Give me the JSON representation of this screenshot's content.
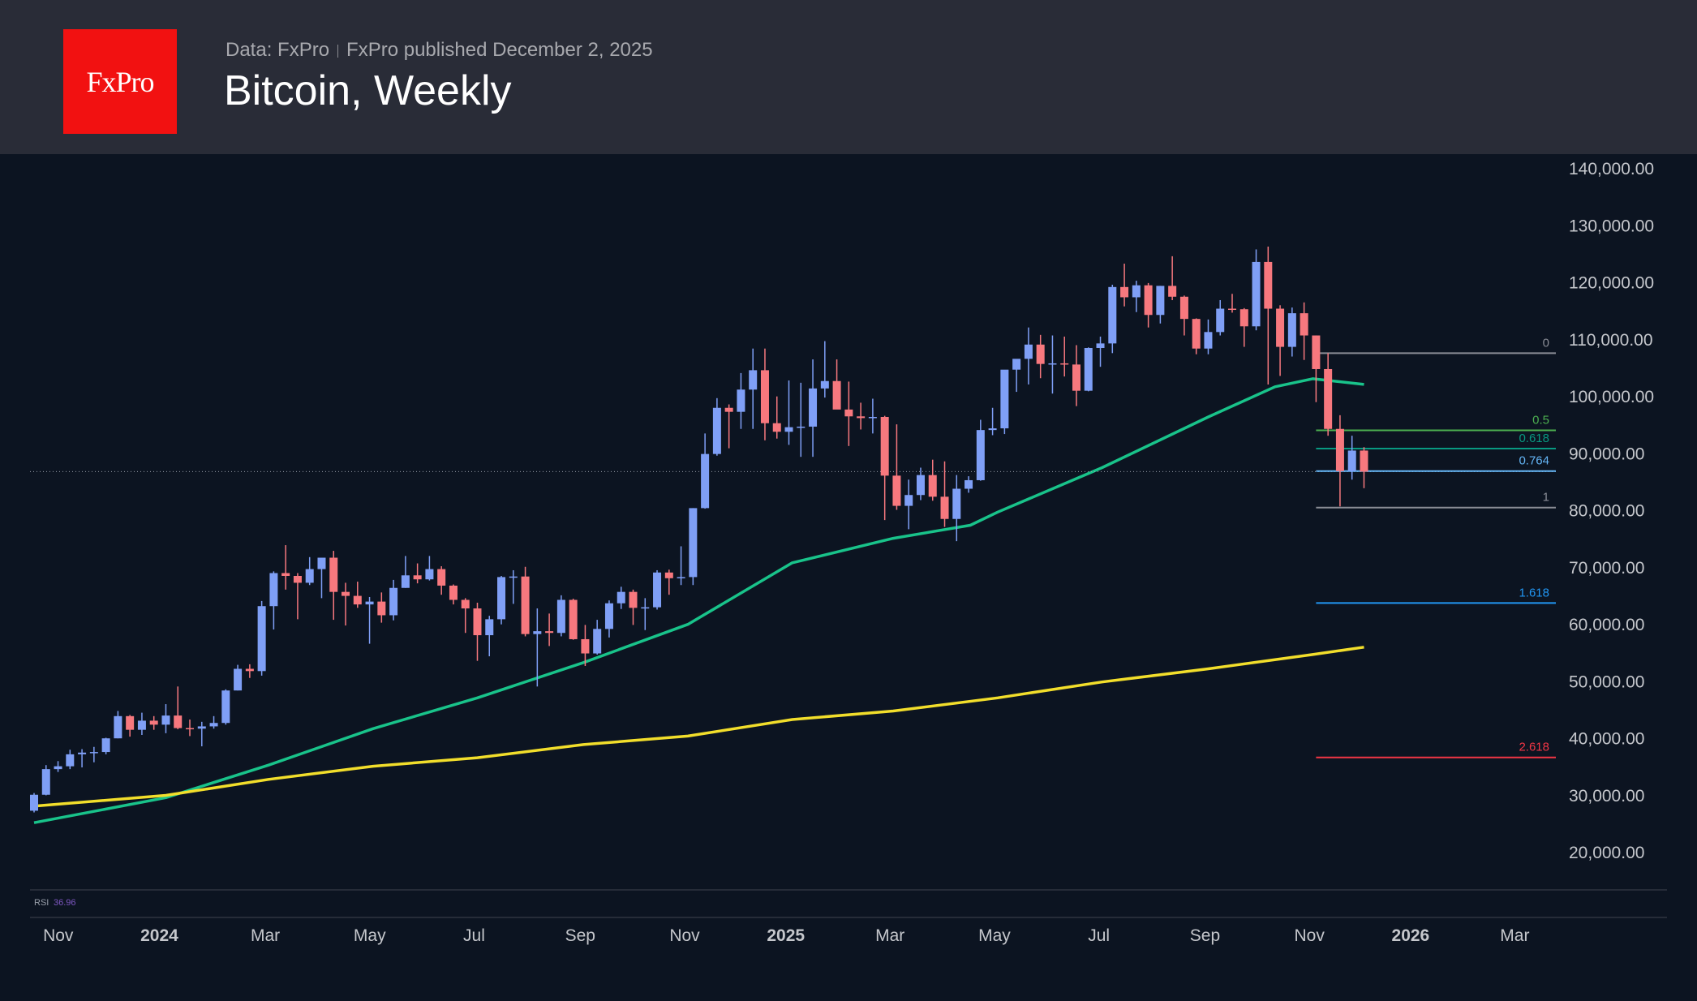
{
  "header": {
    "logo_text": "FxPro",
    "source": "Data: FxPro",
    "published": "FxPro published December 2, 2025",
    "title": "Bitcoin, Weekly"
  },
  "colors": {
    "up": "#7f9ff6",
    "down": "#f7787e",
    "ma_green": "#19c38a",
    "ma_yellow": "#f2de2b",
    "logo": "#f21111"
  },
  "chart_data": {
    "type": "candlestick",
    "title": "Bitcoin, Weekly",
    "interval": "weekly",
    "ylim": [
      10000,
      145000
    ],
    "y_ticks": [
      {
        "value": 140000,
        "label": "140,000.00"
      },
      {
        "value": 130000,
        "label": "130,000.00"
      },
      {
        "value": 120000,
        "label": "120,000.00"
      },
      {
        "value": 110000,
        "label": "110,000.00"
      },
      {
        "value": 100000,
        "label": "100,000.00"
      },
      {
        "value": 90000,
        "label": "90,000.00"
      },
      {
        "value": 80000,
        "label": "80,000.00"
      },
      {
        "value": 70000,
        "label": "70,000.00"
      },
      {
        "value": 60000,
        "label": "60,000.00"
      },
      {
        "value": 50000,
        "label": "50,000.00"
      },
      {
        "value": 40000,
        "label": "40,000.00"
      },
      {
        "value": 30000,
        "label": "30,000.00"
      },
      {
        "value": 20000,
        "label": "20,000.00"
      }
    ],
    "x_ticks": [
      {
        "date": "2023-11-01",
        "label": "Nov",
        "year": false
      },
      {
        "date": "2024-01-01",
        "label": "2024",
        "year": true
      },
      {
        "date": "2024-03-01",
        "label": "Mar",
        "year": false
      },
      {
        "date": "2024-05-01",
        "label": "May",
        "year": false
      },
      {
        "date": "2024-07-01",
        "label": "Jul",
        "year": false
      },
      {
        "date": "2024-09-01",
        "label": "Sep",
        "year": false
      },
      {
        "date": "2024-11-01",
        "label": "Nov",
        "year": false
      },
      {
        "date": "2025-01-01",
        "label": "2025",
        "year": true
      },
      {
        "date": "2025-03-01",
        "label": "Mar",
        "year": false
      },
      {
        "date": "2025-05-01",
        "label": "May",
        "year": false
      },
      {
        "date": "2025-07-01",
        "label": "Jul",
        "year": false
      },
      {
        "date": "2025-09-01",
        "label": "Sep",
        "year": false
      },
      {
        "date": "2025-11-01",
        "label": "Nov",
        "year": false
      },
      {
        "date": "2026-01-01",
        "label": "2026",
        "year": true
      },
      {
        "date": "2026-03-01",
        "label": "Mar",
        "year": false
      }
    ],
    "candles_columns": [
      "date",
      "open",
      "high",
      "low",
      "close"
    ],
    "candles": [
      [
        "2023-10-16",
        27200,
        30300,
        26900,
        30000
      ],
      [
        "2023-10-23",
        30000,
        35200,
        29900,
        34500
      ],
      [
        "2023-10-30",
        34500,
        35900,
        34000,
        35000
      ],
      [
        "2023-11-06",
        35000,
        37900,
        34500,
        37100
      ],
      [
        "2023-11-13",
        37100,
        38000,
        34800,
        37400
      ],
      [
        "2023-11-20",
        37400,
        38400,
        35700,
        37500
      ],
      [
        "2023-11-27",
        37500,
        40000,
        37100,
        39900
      ],
      [
        "2023-12-04",
        39900,
        44700,
        39900,
        43800
      ],
      [
        "2023-12-11",
        43800,
        44000,
        40200,
        41400
      ],
      [
        "2023-12-18",
        41400,
        44400,
        40500,
        43000
      ],
      [
        "2023-12-25",
        43000,
        43800,
        41400,
        42300
      ],
      [
        "2024-01-01",
        42300,
        45900,
        40800,
        43900
      ],
      [
        "2024-01-08",
        43900,
        49000,
        41500,
        41700
      ],
      [
        "2024-01-15",
        41700,
        43200,
        40300,
        41600
      ],
      [
        "2024-01-22",
        41600,
        42800,
        38500,
        42000
      ],
      [
        "2024-01-29",
        42000,
        43800,
        41600,
        42600
      ],
      [
        "2024-02-05",
        42600,
        48500,
        42300,
        48300
      ],
      [
        "2024-02-12",
        48300,
        52800,
        48300,
        52100
      ],
      [
        "2024-02-19",
        52100,
        52900,
        50500,
        51700
      ],
      [
        "2024-02-26",
        51700,
        64000,
        50900,
        63100
      ],
      [
        "2024-03-04",
        63100,
        69200,
        59000,
        68900
      ],
      [
        "2024-03-11",
        68900,
        73800,
        66000,
        68400
      ],
      [
        "2024-03-18",
        68400,
        68900,
        60800,
        67200
      ],
      [
        "2024-03-25",
        67200,
        71700,
        66800,
        69600
      ],
      [
        "2024-04-01",
        69600,
        71400,
        64500,
        71600
      ],
      [
        "2024-04-08",
        71600,
        72800,
        60700,
        65600
      ],
      [
        "2024-04-15",
        65600,
        67200,
        59700,
        64900
      ],
      [
        "2024-04-22",
        64900,
        67400,
        62800,
        63400
      ],
      [
        "2024-04-29",
        63400,
        64700,
        56500,
        63900
      ],
      [
        "2024-05-06",
        63900,
        65500,
        60200,
        61500
      ],
      [
        "2024-05-13",
        61500,
        67700,
        60600,
        66300
      ],
      [
        "2024-05-20",
        66300,
        71900,
        66300,
        68500
      ],
      [
        "2024-05-27",
        68500,
        70600,
        67100,
        67800
      ],
      [
        "2024-06-03",
        67800,
        71900,
        67600,
        69600
      ],
      [
        "2024-06-10",
        69600,
        70100,
        65100,
        66700
      ],
      [
        "2024-06-17",
        66700,
        66900,
        63400,
        64200
      ],
      [
        "2024-06-24",
        64200,
        64500,
        58400,
        62700
      ],
      [
        "2024-07-01",
        62700,
        63700,
        53500,
        58000
      ],
      [
        "2024-07-08",
        58000,
        61400,
        54300,
        60800
      ],
      [
        "2024-07-15",
        60800,
        68400,
        59900,
        68200
      ],
      [
        "2024-07-22",
        68200,
        69400,
        63500,
        68300
      ],
      [
        "2024-07-29",
        68300,
        70000,
        57800,
        58200
      ],
      [
        "2024-08-05",
        58200,
        62700,
        49000,
        58700
      ],
      [
        "2024-08-12",
        58700,
        61800,
        56100,
        58400
      ],
      [
        "2024-08-19",
        58400,
        65000,
        57800,
        64200
      ],
      [
        "2024-08-26",
        64200,
        64400,
        57200,
        57300
      ],
      [
        "2024-09-02",
        57300,
        59800,
        52600,
        54800
      ],
      [
        "2024-09-09",
        54800,
        60700,
        54600,
        59100
      ],
      [
        "2024-09-16",
        59100,
        64100,
        57600,
        63600
      ],
      [
        "2024-09-23",
        63600,
        66500,
        62600,
        65600
      ],
      [
        "2024-09-30",
        65600,
        66000,
        59800,
        62800
      ],
      [
        "2024-10-07",
        62800,
        64500,
        58900,
        62900
      ],
      [
        "2024-10-14",
        62900,
        69400,
        62500,
        69000
      ],
      [
        "2024-10-21",
        69000,
        69500,
        65100,
        68000
      ],
      [
        "2024-10-28",
        68000,
        73600,
        66800,
        68200
      ],
      [
        "2024-11-04",
        68200,
        80300,
        66800,
        80300
      ],
      [
        "2024-11-11",
        80300,
        93400,
        80200,
        89800
      ],
      [
        "2024-11-18",
        89800,
        99600,
        89500,
        97900
      ],
      [
        "2024-11-25",
        97900,
        98500,
        90800,
        97200
      ],
      [
        "2024-12-02",
        97200,
        104000,
        94200,
        101100
      ],
      [
        "2024-12-09",
        101100,
        108300,
        94200,
        104500
      ],
      [
        "2024-12-16",
        104500,
        108300,
        92200,
        95200
      ],
      [
        "2024-12-23",
        95200,
        99900,
        92500,
        93700
      ],
      [
        "2024-12-30",
        93700,
        102700,
        91400,
        94500
      ],
      [
        "2025-01-06",
        94500,
        102300,
        89300,
        94600
      ],
      [
        "2025-01-13",
        94600,
        106400,
        89300,
        101300
      ],
      [
        "2025-01-20",
        101300,
        109600,
        99700,
        102600
      ],
      [
        "2025-01-27",
        102600,
        106400,
        97700,
        97600
      ],
      [
        "2025-02-03",
        97600,
        102500,
        91200,
        96400
      ],
      [
        "2025-02-10",
        96400,
        98800,
        94100,
        96100
      ],
      [
        "2025-02-17",
        96100,
        99500,
        93400,
        96300
      ],
      [
        "2025-02-24",
        96300,
        96500,
        78200,
        86000
      ],
      [
        "2025-03-03",
        86000,
        95000,
        80000,
        80700
      ],
      [
        "2025-03-10",
        80700,
        85300,
        76600,
        82600
      ],
      [
        "2025-03-17",
        82600,
        87400,
        81700,
        86100
      ],
      [
        "2025-03-24",
        86100,
        88800,
        81600,
        82300
      ],
      [
        "2025-03-31",
        82300,
        88500,
        77000,
        78400
      ],
      [
        "2025-04-07",
        78400,
        86100,
        74500,
        83700
      ],
      [
        "2025-04-14",
        83700,
        85900,
        83000,
        85200
      ],
      [
        "2025-04-21",
        85200,
        95800,
        85100,
        94000
      ],
      [
        "2025-04-28",
        94000,
        97900,
        93100,
        94300
      ],
      [
        "2025-05-05",
        94300,
        104300,
        93300,
        104600
      ],
      [
        "2025-05-12",
        104600,
        106000,
        100700,
        106500
      ],
      [
        "2025-05-19",
        106500,
        112000,
        102000,
        109000
      ],
      [
        "2025-05-26",
        109000,
        110700,
        103100,
        105600
      ],
      [
        "2025-06-02",
        105600,
        110600,
        100400,
        105700
      ],
      [
        "2025-06-09",
        105700,
        110400,
        103400,
        105500
      ],
      [
        "2025-06-16",
        105500,
        108900,
        98200,
        100900
      ],
      [
        "2025-06-23",
        100900,
        108500,
        100800,
        108400
      ],
      [
        "2025-06-30",
        108400,
        110400,
        105100,
        109200
      ],
      [
        "2025-07-07",
        109200,
        119500,
        107500,
        119100
      ],
      [
        "2025-07-14",
        119100,
        123200,
        115700,
        117300
      ],
      [
        "2025-07-21",
        117300,
        120200,
        114700,
        119400
      ],
      [
        "2025-07-28",
        119400,
        119800,
        112000,
        114200
      ],
      [
        "2025-08-04",
        114200,
        119300,
        112700,
        119300
      ],
      [
        "2025-08-11",
        119300,
        124500,
        116800,
        117400
      ],
      [
        "2025-08-18",
        117400,
        117600,
        110600,
        113500
      ],
      [
        "2025-08-25",
        113500,
        113600,
        107300,
        108300
      ],
      [
        "2025-09-01",
        108300,
        113400,
        107300,
        111200
      ],
      [
        "2025-09-08",
        111200,
        116800,
        110600,
        115300
      ],
      [
        "2025-09-15",
        115300,
        117900,
        114600,
        115200
      ],
      [
        "2025-09-22",
        115200,
        115400,
        108600,
        112200
      ],
      [
        "2025-09-29",
        112200,
        125700,
        111500,
        123500
      ],
      [
        "2025-10-06",
        123500,
        126200,
        102000,
        115300
      ],
      [
        "2025-10-13",
        115300,
        115900,
        103500,
        108600
      ],
      [
        "2025-10-20",
        108600,
        115500,
        106900,
        114500
      ],
      [
        "2025-10-27",
        114500,
        116400,
        106300,
        110600
      ],
      [
        "2025-11-03",
        110600,
        110600,
        98900,
        104700
      ],
      [
        "2025-11-10",
        104700,
        107500,
        93000,
        94200
      ],
      [
        "2025-11-17",
        94200,
        96600,
        80600,
        86800
      ],
      [
        "2025-11-24",
        86800,
        93000,
        85300,
        90400
      ],
      [
        "2025-12-01",
        90400,
        91000,
        83800,
        86700
      ]
    ],
    "last_price": 86700,
    "moving_averages": [
      {
        "color": "#19c38a",
        "points": [
          [
            "2023-10-16",
            25100
          ],
          [
            "2024-01-01",
            29500
          ],
          [
            "2024-03-01",
            35200
          ],
          [
            "2024-05-01",
            41600
          ],
          [
            "2024-07-01",
            47000
          ],
          [
            "2024-09-01",
            53200
          ],
          [
            "2024-11-01",
            59900
          ],
          [
            "2025-01-01",
            70700
          ],
          [
            "2025-03-01",
            75000
          ],
          [
            "2025-04-15",
            77300
          ],
          [
            "2025-05-01",
            79600
          ],
          [
            "2025-07-01",
            87400
          ],
          [
            "2025-09-01",
            96300
          ],
          [
            "2025-10-10",
            101600
          ],
          [
            "2025-11-01",
            103000
          ],
          [
            "2025-12-01",
            102000
          ]
        ]
      },
      {
        "color": "#f2de2b",
        "points": [
          [
            "2023-10-16",
            28000
          ],
          [
            "2024-01-01",
            29900
          ],
          [
            "2024-03-01",
            32700
          ],
          [
            "2024-05-01",
            35000
          ],
          [
            "2024-07-01",
            36500
          ],
          [
            "2024-09-01",
            38800
          ],
          [
            "2024-11-01",
            40300
          ],
          [
            "2025-01-01",
            43200
          ],
          [
            "2025-03-01",
            44700
          ],
          [
            "2025-05-01",
            47000
          ],
          [
            "2025-07-01",
            49800
          ],
          [
            "2025-09-01",
            52100
          ],
          [
            "2025-11-01",
            54600
          ],
          [
            "2025-12-01",
            55900
          ]
        ]
      }
    ],
    "fibonacci": {
      "start_date": "2025-11-03",
      "levels": [
        {
          "label": "0",
          "value": 107500,
          "color": "#8a8d96"
        },
        {
          "label": "0.5",
          "value": 93950,
          "color": "#4caf50"
        },
        {
          "label": "0.618",
          "value": 90750,
          "color": "#089981"
        },
        {
          "label": "0.764",
          "value": 86800,
          "color": "#64b5f6"
        },
        {
          "label": "1",
          "value": 80400,
          "color": "#8a8d96"
        },
        {
          "label": "1.618",
          "value": 63650,
          "color": "#2196f3"
        },
        {
          "label": "2.618",
          "value": 36550,
          "color": "#f23645"
        }
      ]
    },
    "rsi": {
      "label": "RSI",
      "value": "36.96"
    }
  }
}
